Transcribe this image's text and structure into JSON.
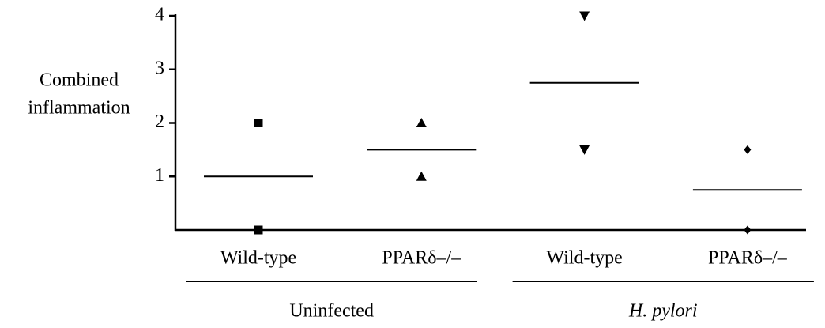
{
  "chart_data": {
    "type": "dot",
    "ylabel": [
      "Combined",
      "inflammation"
    ],
    "categories": [
      "Wild-type",
      "PPARδ–/–",
      "Wild-type",
      "PPARδ–/–"
    ],
    "points": [
      [
        2,
        0
      ],
      [
        2,
        1
      ],
      [
        4,
        1.5
      ],
      [
        1.5,
        0
      ]
    ],
    "means": [
      1,
      1.5,
      2.75,
      0.75
    ],
    "markers": [
      "square",
      "triangle-up",
      "triangle-down",
      "diamond"
    ],
    "groups": [
      {
        "name": "Uninfected",
        "italic": false
      },
      {
        "name": "H. pylori",
        "italic": true
      }
    ],
    "color": "#000000",
    "ylim": [
      0,
      4
    ],
    "yticks": [
      1,
      2,
      3,
      4
    ]
  }
}
